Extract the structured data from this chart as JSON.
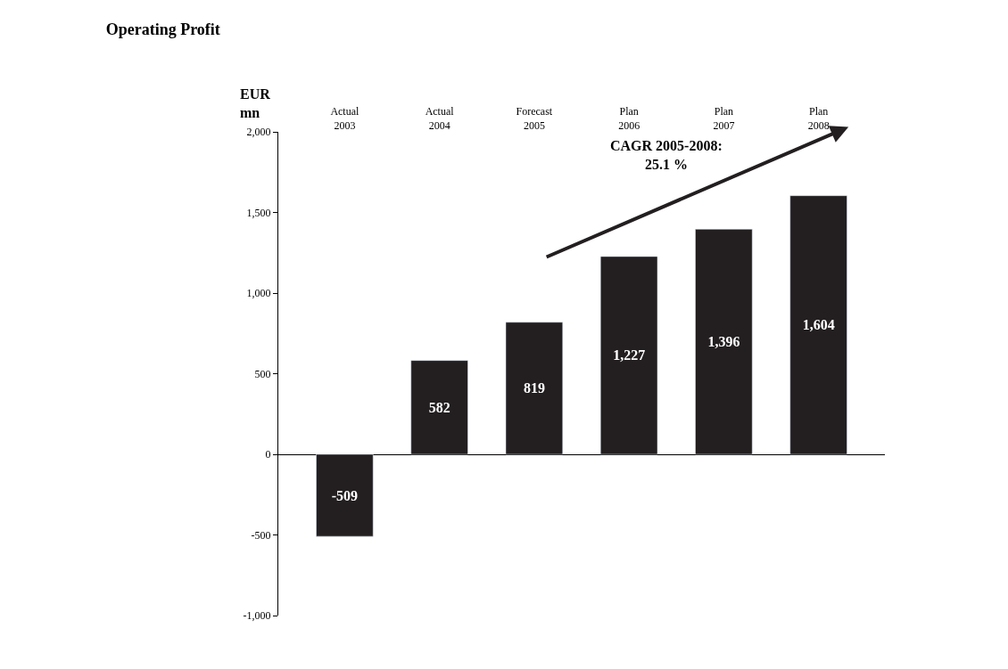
{
  "chart_data": {
    "type": "bar",
    "title": "Operating Profit",
    "ylabel": "EUR\nmn",
    "categories": [
      "Actual\n2003",
      "Actual\n2004",
      "Forecast\n2005",
      "Plan\n2006",
      "Plan\n2007",
      "Plan\n2008"
    ],
    "values": [
      -509,
      582,
      819,
      1227,
      1396,
      1604
    ],
    "value_labels": [
      "-509",
      "582",
      "819",
      "1,227",
      "1,396",
      "1,604"
    ],
    "color": "#231f20",
    "ylim": [
      -1000,
      2000
    ],
    "yticks": [
      {
        "value": -1000,
        "label": "-1,000"
      },
      -500,
      0,
      500,
      {
        "value": 1000,
        "label": "1,000"
      },
      {
        "value": 1500,
        "label": "1,500"
      },
      {
        "value": 2000,
        "label": "2,000"
      }
    ],
    "annotations": [
      "CAGR 2005-2008:\n25.1 %"
    ]
  }
}
